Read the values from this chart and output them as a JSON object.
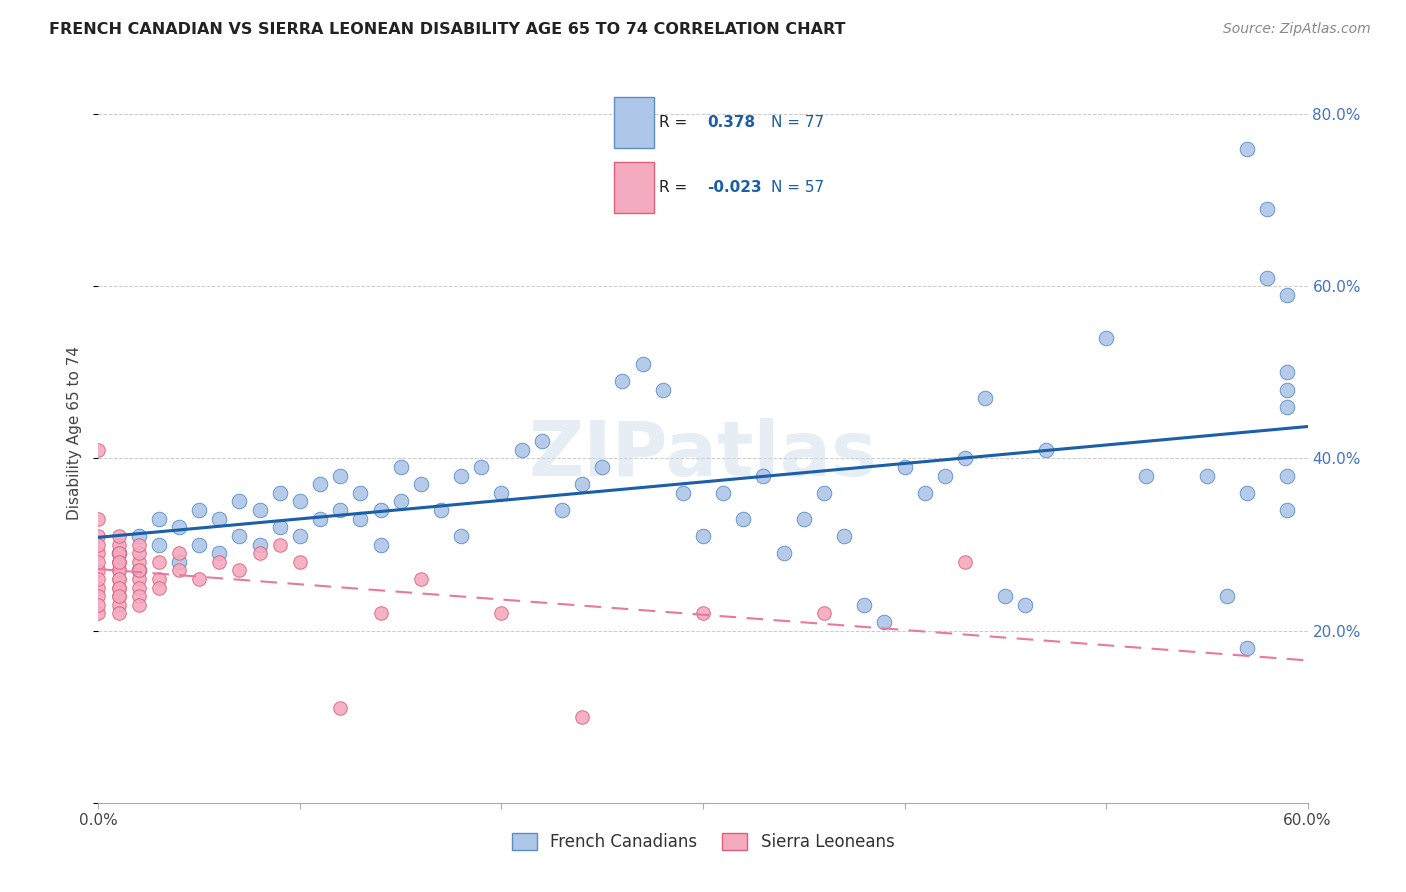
{
  "title": "FRENCH CANADIAN VS SIERRA LEONEAN DISABILITY AGE 65 TO 74 CORRELATION CHART",
  "source": "Source: ZipAtlas.com",
  "ylabel": "Disability Age 65 to 74",
  "xlim": [
    0.0,
    0.6
  ],
  "ylim": [
    0.08,
    0.86
  ],
  "blue_R": 0.378,
  "blue_N": 77,
  "pink_R": -0.023,
  "pink_N": 57,
  "blue_color": "#aec6e8",
  "blue_edge": "#5b8ec4",
  "pink_color": "#f4aabf",
  "pink_edge": "#e0607a",
  "trendline_blue": "#1a5fa8",
  "trendline_pink": "#e878a0",
  "watermark": "ZIPatlas",
  "legend_label_blue": "French Canadians",
  "legend_label_pink": "Sierra Leoneans",
  "blue_x": [
    0.01,
    0.02,
    0.02,
    0.03,
    0.03,
    0.04,
    0.04,
    0.05,
    0.05,
    0.06,
    0.06,
    0.07,
    0.07,
    0.08,
    0.08,
    0.09,
    0.09,
    0.1,
    0.1,
    0.11,
    0.11,
    0.12,
    0.12,
    0.13,
    0.13,
    0.14,
    0.14,
    0.15,
    0.15,
    0.16,
    0.17,
    0.18,
    0.18,
    0.19,
    0.2,
    0.21,
    0.22,
    0.23,
    0.24,
    0.25,
    0.26,
    0.27,
    0.28,
    0.29,
    0.3,
    0.31,
    0.32,
    0.33,
    0.34,
    0.35,
    0.36,
    0.37,
    0.38,
    0.39,
    0.4,
    0.41,
    0.42,
    0.43,
    0.44,
    0.45,
    0.46,
    0.47,
    0.5,
    0.52,
    0.55,
    0.56,
    0.57,
    0.57,
    0.57,
    0.58,
    0.58,
    0.59,
    0.59,
    0.59,
    0.59,
    0.59,
    0.59
  ],
  "blue_y": [
    0.29,
    0.27,
    0.31,
    0.3,
    0.33,
    0.28,
    0.32,
    0.3,
    0.34,
    0.29,
    0.33,
    0.31,
    0.35,
    0.3,
    0.34,
    0.32,
    0.36,
    0.31,
    0.35,
    0.33,
    0.37,
    0.34,
    0.38,
    0.33,
    0.36,
    0.34,
    0.3,
    0.35,
    0.39,
    0.37,
    0.34,
    0.38,
    0.31,
    0.39,
    0.36,
    0.41,
    0.42,
    0.34,
    0.37,
    0.39,
    0.49,
    0.51,
    0.48,
    0.36,
    0.31,
    0.36,
    0.33,
    0.38,
    0.29,
    0.33,
    0.36,
    0.31,
    0.23,
    0.21,
    0.39,
    0.36,
    0.38,
    0.4,
    0.47,
    0.24,
    0.23,
    0.41,
    0.54,
    0.38,
    0.38,
    0.24,
    0.36,
    0.18,
    0.76,
    0.69,
    0.61,
    0.46,
    0.48,
    0.5,
    0.38,
    0.34,
    0.59
  ],
  "pink_x": [
    0.0,
    0.0,
    0.0,
    0.0,
    0.0,
    0.0,
    0.0,
    0.0,
    0.0,
    0.0,
    0.0,
    0.0,
    0.01,
    0.01,
    0.01,
    0.01,
    0.01,
    0.01,
    0.01,
    0.01,
    0.01,
    0.01,
    0.01,
    0.01,
    0.01,
    0.01,
    0.01,
    0.01,
    0.01,
    0.02,
    0.02,
    0.02,
    0.02,
    0.02,
    0.02,
    0.02,
    0.02,
    0.02,
    0.03,
    0.03,
    0.03,
    0.04,
    0.04,
    0.05,
    0.06,
    0.07,
    0.08,
    0.09,
    0.1,
    0.12,
    0.14,
    0.16,
    0.2,
    0.24,
    0.3,
    0.36,
    0.43
  ],
  "pink_y": [
    0.27,
    0.29,
    0.31,
    0.28,
    0.25,
    0.24,
    0.26,
    0.3,
    0.22,
    0.23,
    0.33,
    0.41,
    0.28,
    0.27,
    0.29,
    0.26,
    0.25,
    0.24,
    0.23,
    0.22,
    0.28,
    0.3,
    0.27,
    0.26,
    0.25,
    0.29,
    0.31,
    0.28,
    0.24,
    0.27,
    0.26,
    0.25,
    0.28,
    0.29,
    0.3,
    0.24,
    0.23,
    0.27,
    0.28,
    0.26,
    0.25,
    0.27,
    0.29,
    0.26,
    0.28,
    0.27,
    0.29,
    0.3,
    0.28,
    0.11,
    0.22,
    0.26,
    0.22,
    0.1,
    0.22,
    0.22,
    0.28
  ]
}
